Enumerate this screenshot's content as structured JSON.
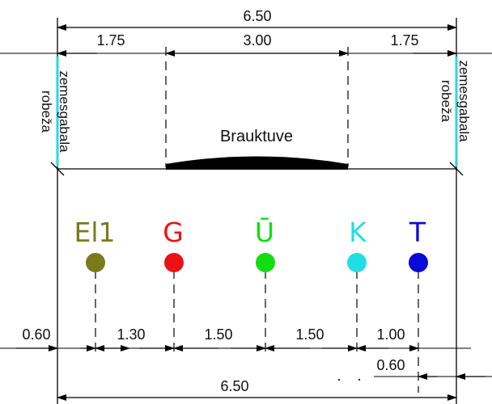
{
  "top_dimensions": {
    "overall": "6.50",
    "left_side": "1.75",
    "center": "3.00",
    "right_side": "1.75"
  },
  "boundary_labels": {
    "left": {
      "line1": "zemesgabala",
      "line2": "robeža"
    },
    "right": {
      "line1": "zemesgabala",
      "line2": "robeža"
    },
    "boundary_color": "#29d6e6"
  },
  "carriageway_label": "Brauktuve",
  "utilities": [
    {
      "label": "El1",
      "color": "#7a7a1a"
    },
    {
      "label": "G",
      "color": "#ee1111"
    },
    {
      "label": "Ū",
      "color": "#11dd11"
    },
    {
      "label": "K",
      "color": "#22dde6"
    },
    {
      "label": "T",
      "color": "#0a0ad8"
    }
  ],
  "bottom_dimensions": {
    "offsets": [
      "0.60",
      "1.30",
      "1.50",
      "1.50",
      "1.00"
    ],
    "right_offset": "0.60",
    "overall": "6.50"
  }
}
